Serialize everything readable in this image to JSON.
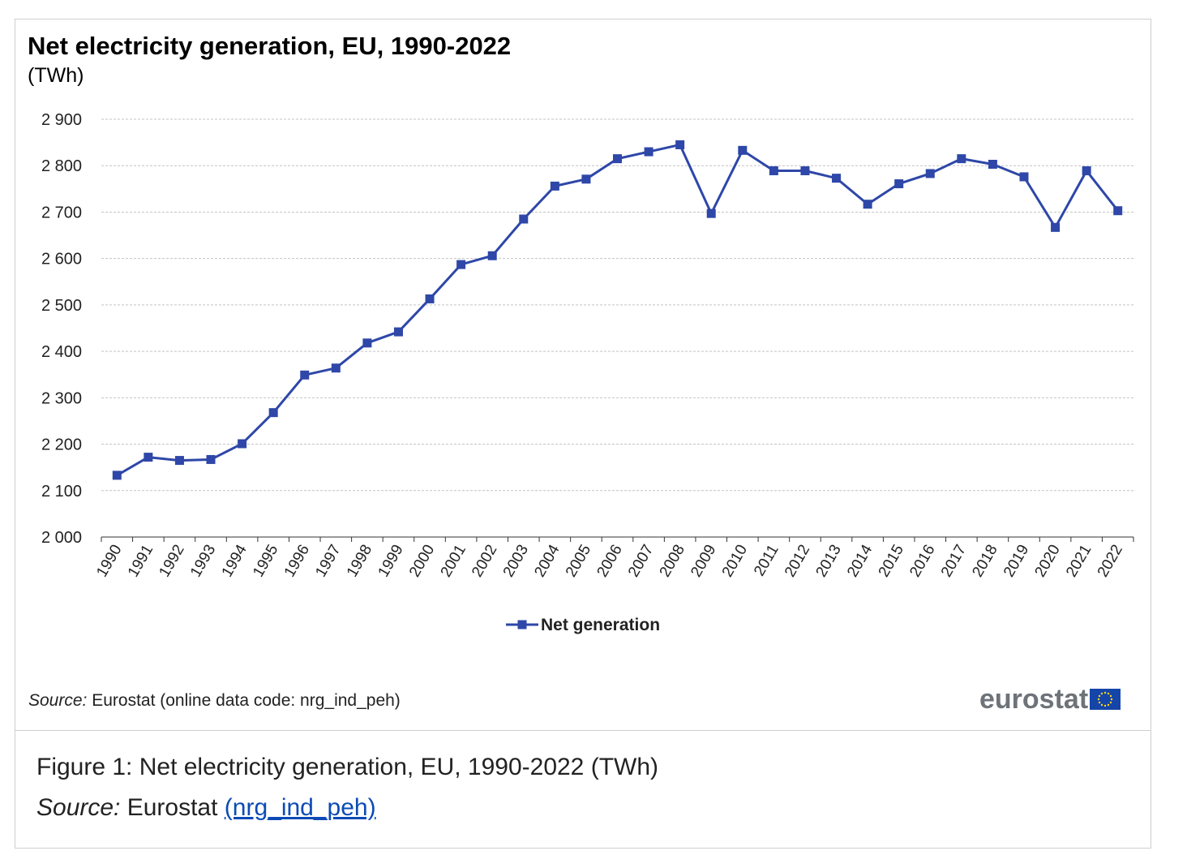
{
  "chart_data": {
    "type": "line",
    "title": "Net electricity generation, EU, 1990-2022",
    "unit": "(TWh)",
    "xlabel": "",
    "ylabel": "",
    "ylim": [
      2000,
      2900
    ],
    "y_ticks": [
      "2 000",
      "2 100",
      "2 200",
      "2 300",
      "2 400",
      "2 500",
      "2 600",
      "2 700",
      "2 800",
      "2 900"
    ],
    "y_tick_values": [
      2000,
      2100,
      2200,
      2300,
      2400,
      2500,
      2600,
      2700,
      2800,
      2900
    ],
    "categories": [
      "1990",
      "1991",
      "1992",
      "1993",
      "1994",
      "1995",
      "1996",
      "1997",
      "1998",
      "1999",
      "2000",
      "2001",
      "2002",
      "2003",
      "2004",
      "2005",
      "2006",
      "2007",
      "2008",
      "2009",
      "2010",
      "2011",
      "2012",
      "2013",
      "2014",
      "2015",
      "2016",
      "2017",
      "2018",
      "2019",
      "2020",
      "2021",
      "2022"
    ],
    "series": [
      {
        "name": "Net generation",
        "color": "#2e47a8",
        "values": [
          2133,
          2172,
          2165,
          2167,
          2201,
          2268,
          2349,
          2364,
          2418,
          2442,
          2513,
          2587,
          2606,
          2685,
          2756,
          2771,
          2815,
          2830,
          2845,
          2697,
          2833,
          2789,
          2789,
          2773,
          2717,
          2761,
          2783,
          2815,
          2803,
          2776,
          2667,
          2789,
          2703
        ]
      }
    ],
    "grid": "horizontal dashed",
    "legend_position": "bottom-center"
  },
  "footer": {
    "source_label": "Source:",
    "source_text": " Eurostat (online data code: nrg_ind_peh)",
    "logo_text": "eurostat",
    "logo_icon": "eu-flag-icon"
  },
  "caption": {
    "figure_text": "Figure 1: Net electricity generation, EU, 1990-2022 (TWh)",
    "source_label": "Source:",
    "source_text": " Eurostat ",
    "link_text": "(nrg_ind_peh)"
  }
}
